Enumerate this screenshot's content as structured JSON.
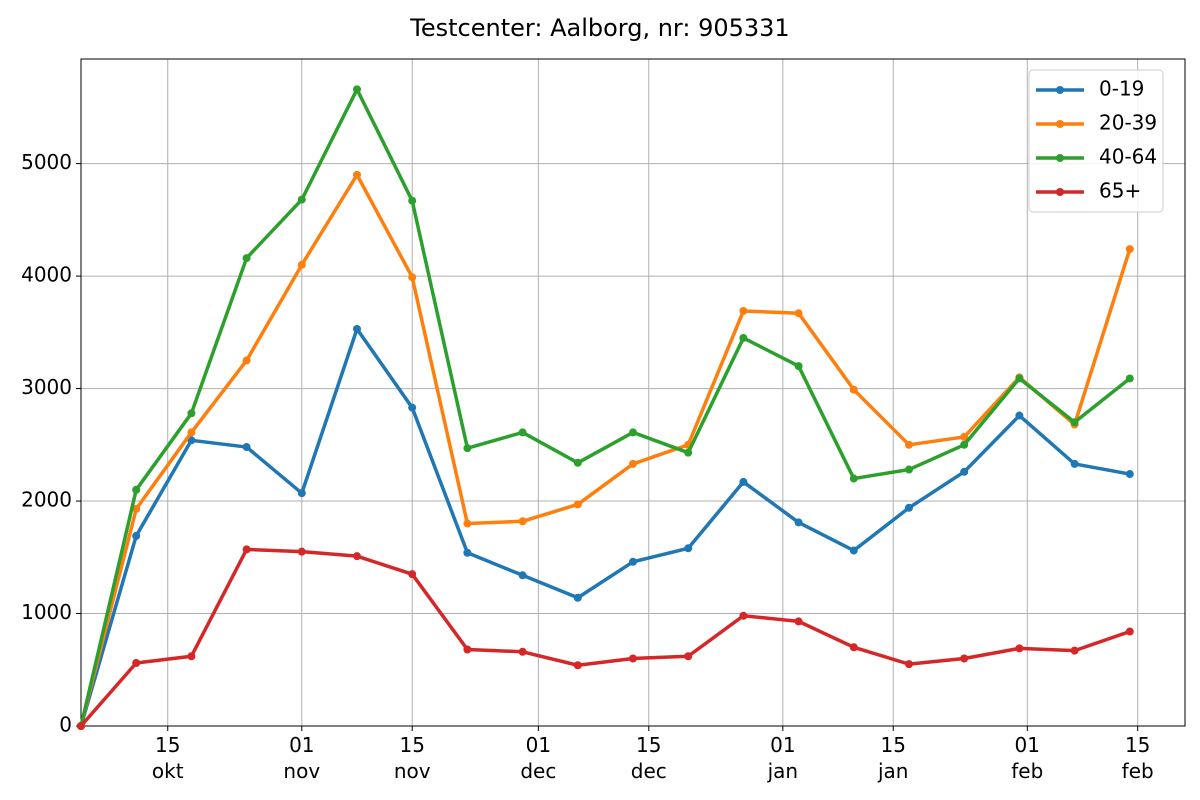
{
  "chart_data": {
    "type": "line",
    "title": "Testcenter: Aalborg, nr: 905331",
    "x": [
      "10-04",
      "10-11",
      "10-18",
      "10-25",
      "11-01",
      "11-08",
      "11-15",
      "11-22",
      "11-29",
      "12-06",
      "12-13",
      "12-20",
      "12-27",
      "01-03",
      "01-10",
      "01-17",
      "01-24",
      "01-31",
      "02-07",
      "02-14"
    ],
    "series": [
      {
        "name": "0-19",
        "color": "#1f77b4",
        "values": [
          0,
          1690,
          2540,
          2480,
          2070,
          3530,
          2830,
          1540,
          1340,
          1140,
          1460,
          1580,
          2170,
          1810,
          1560,
          1940,
          2260,
          2760,
          2330,
          2240
        ]
      },
      {
        "name": "20-39",
        "color": "#ff7f0e",
        "values": [
          0,
          1930,
          2610,
          3250,
          4100,
          4900,
          3990,
          1800,
          1820,
          1970,
          2330,
          2500,
          3690,
          3670,
          2990,
          2500,
          2570,
          3100,
          2680,
          4240
        ]
      },
      {
        "name": "40-64",
        "color": "#2ca02c",
        "values": [
          0,
          2100,
          2780,
          4160,
          4680,
          5660,
          4670,
          2470,
          2610,
          2340,
          2610,
          2430,
          3450,
          3200,
          2200,
          2280,
          2500,
          3090,
          2700,
          3090
        ]
      },
      {
        "name": "65+",
        "color": "#d62728",
        "values": [
          0,
          560,
          620,
          1570,
          1550,
          1510,
          1350,
          680,
          660,
          540,
          600,
          620,
          980,
          930,
          700,
          550,
          600,
          690,
          670,
          840
        ]
      }
    ],
    "xlim": [
      "10-04",
      "02-21"
    ],
    "xticks": [
      {
        "value": "10-15",
        "label": "15\nokt"
      },
      {
        "value": "11-01",
        "label": "01\nnov"
      },
      {
        "value": "11-15",
        "label": "15\nnov"
      },
      {
        "value": "12-01",
        "label": "01\ndec"
      },
      {
        "value": "12-15",
        "label": "15\ndec"
      },
      {
        "value": "01-01",
        "label": "01\njan"
      },
      {
        "value": "01-15",
        "label": "15\njan"
      },
      {
        "value": "02-01",
        "label": "01\nfeb"
      },
      {
        "value": "02-15",
        "label": "15\nfeb"
      }
    ],
    "ylim": [
      0,
      5930
    ],
    "yticks": [
      0,
      1000,
      2000,
      3000,
      4000,
      5000
    ],
    "grid": true,
    "legend": "upper right"
  }
}
